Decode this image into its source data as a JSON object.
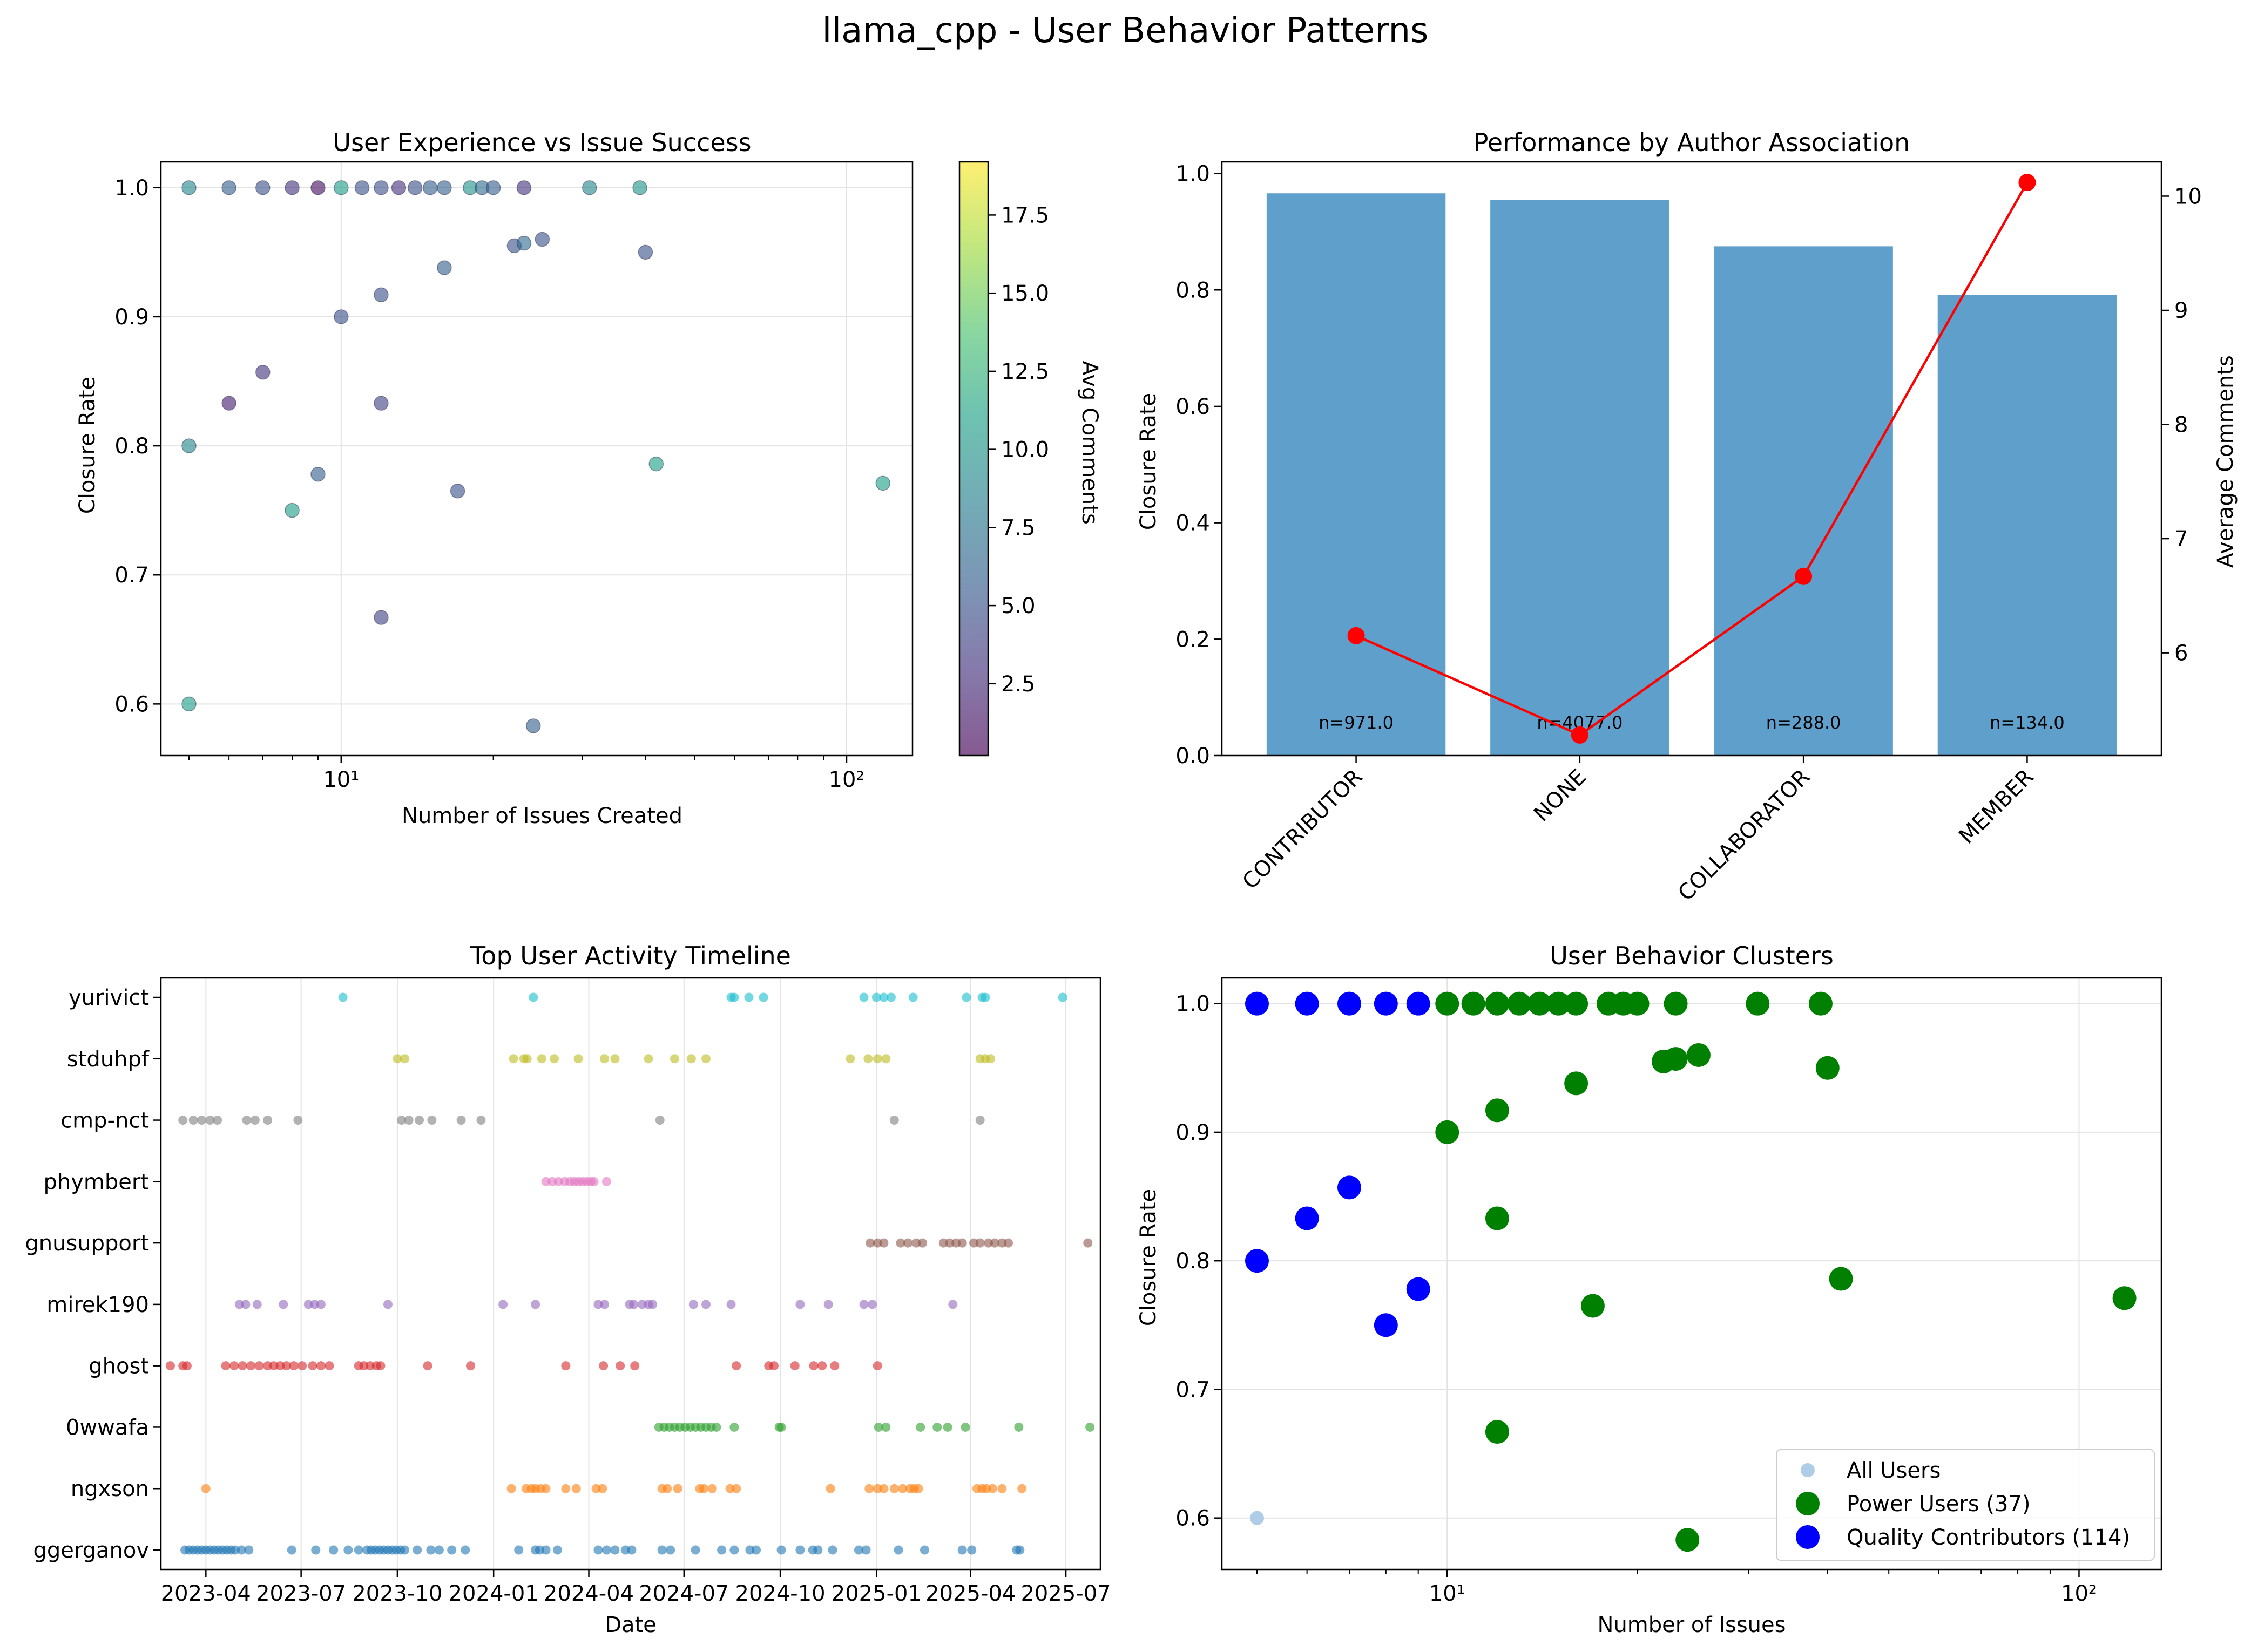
{
  "figure": {
    "title": "llama_cpp - User Behavior Patterns"
  },
  "chart_data": [
    {
      "type": "scatter",
      "title": "User Experience vs Issue Success",
      "xlabel": "Number of Issues Created",
      "ylabel": "Closure Rate",
      "xscale": "log",
      "xlim": [
        4.4,
        135
      ],
      "ylim": [
        0.56,
        1.02
      ],
      "xticks": [
        10,
        100
      ],
      "xtick_labels": [
        "10¹",
        "10²"
      ],
      "yticks": [
        0.6,
        0.7,
        0.8,
        0.9,
        1.0
      ],
      "ytick_labels": [
        "0.6",
        "0.7",
        "0.8",
        "0.9",
        "1.0"
      ],
      "grid": true,
      "colorbar": {
        "label": "Avg Comments",
        "range": [
          0.2,
          19.2
        ],
        "ticks": [
          2.5,
          5.0,
          7.5,
          10.0,
          12.5,
          15.0,
          17.5
        ],
        "tick_labels": [
          "2.5",
          "5.0",
          "7.5",
          "10.0",
          "12.5",
          "15.0",
          "17.5"
        ],
        "colormap": "viridis",
        "colors": [
          "#440154",
          "#46327e",
          "#365c8d",
          "#277f8e",
          "#1fa187",
          "#4ac16d",
          "#a0da39",
          "#fde725"
        ]
      },
      "points": [
        {
          "x": 5,
          "y": 1.0,
          "c": 9
        },
        {
          "x": 6,
          "y": 1.0,
          "c": 6
        },
        {
          "x": 7,
          "y": 1.0,
          "c": 5
        },
        {
          "x": 8,
          "y": 1.0,
          "c": 3
        },
        {
          "x": 9,
          "y": 1.0,
          "c": 1
        },
        {
          "x": 10,
          "y": 1.0,
          "c": 11
        },
        {
          "x": 11,
          "y": 1.0,
          "c": 5
        },
        {
          "x": 12,
          "y": 1.0,
          "c": 5
        },
        {
          "x": 13,
          "y": 1.0,
          "c": 3
        },
        {
          "x": 14,
          "y": 1.0,
          "c": 5
        },
        {
          "x": 15,
          "y": 1.0,
          "c": 6
        },
        {
          "x": 16,
          "y": 1.0,
          "c": 6
        },
        {
          "x": 18,
          "y": 1.0,
          "c": 10
        },
        {
          "x": 19,
          "y": 1.0,
          "c": 7
        },
        {
          "x": 20,
          "y": 1.0,
          "c": 6
        },
        {
          "x": 23,
          "y": 1.0,
          "c": 3
        },
        {
          "x": 31,
          "y": 1.0,
          "c": 9
        },
        {
          "x": 39,
          "y": 1.0,
          "c": 10
        },
        {
          "x": 5,
          "y": 0.8,
          "c": 9
        },
        {
          "x": 5,
          "y": 0.6,
          "c": 11
        },
        {
          "x": 6,
          "y": 0.833,
          "c": 2
        },
        {
          "x": 7,
          "y": 0.857,
          "c": 3
        },
        {
          "x": 8,
          "y": 0.75,
          "c": 11
        },
        {
          "x": 9,
          "y": 0.778,
          "c": 6
        },
        {
          "x": 10,
          "y": 0.9,
          "c": 5
        },
        {
          "x": 12,
          "y": 0.917,
          "c": 5
        },
        {
          "x": 12,
          "y": 0.833,
          "c": 4
        },
        {
          "x": 12,
          "y": 0.667,
          "c": 4
        },
        {
          "x": 16,
          "y": 0.938,
          "c": 6
        },
        {
          "x": 17,
          "y": 0.765,
          "c": 5
        },
        {
          "x": 22,
          "y": 0.955,
          "c": 5
        },
        {
          "x": 23,
          "y": 0.957,
          "c": 7
        },
        {
          "x": 24,
          "y": 0.583,
          "c": 6
        },
        {
          "x": 25,
          "y": 0.96,
          "c": 5
        },
        {
          "x": 40,
          "y": 0.95,
          "c": 5
        },
        {
          "x": 42,
          "y": 0.786,
          "c": 11
        },
        {
          "x": 118,
          "y": 0.771,
          "c": 11
        }
      ]
    },
    {
      "type": "bar",
      "title": "Performance by Author Association",
      "ylabel": "Closure Rate",
      "y2label": "Average Comments",
      "categories": [
        "CONTRIBUTOR",
        "NONE",
        "COLLABORATOR",
        "MEMBER"
      ],
      "values": [
        0.966,
        0.955,
        0.875,
        0.791
      ],
      "bar_color": "#5f9fcc",
      "bar_labels": [
        "n=971.0",
        "n=4077.0",
        "n=288.0",
        "n=134.0"
      ],
      "ylim": [
        0,
        1.02
      ],
      "yticks": [
        0.0,
        0.2,
        0.4,
        0.6,
        0.8,
        1.0
      ],
      "ytick_labels": [
        "0.0",
        "0.2",
        "0.4",
        "0.6",
        "0.8",
        "1.0"
      ],
      "y2lim": [
        5.1,
        10.3
      ],
      "y2ticks": [
        6,
        7,
        8,
        9,
        10
      ],
      "y2tick_labels": [
        "6",
        "7",
        "8",
        "9",
        "10"
      ],
      "line_series": {
        "values": [
          6.15,
          5.28,
          6.67,
          10.12
        ],
        "color": "#ff0000"
      }
    },
    {
      "type": "scatter",
      "title": "Top User Activity Timeline",
      "xlabel": "Date",
      "xlim": [
        "2023-02-17",
        "2025-08-03"
      ],
      "xticks": [
        "2023-04-01",
        "2023-07-01",
        "2023-10-01",
        "2024-01-01",
        "2024-04-01",
        "2024-07-01",
        "2024-10-01",
        "2025-01-01",
        "2025-04-01",
        "2025-07-01"
      ],
      "xtick_labels": [
        "2023-04",
        "2023-07",
        "2023-10",
        "2024-01",
        "2024-04",
        "2024-07",
        "2024-10",
        "2025-01",
        "2025-04",
        "2025-07"
      ],
      "grid": "x",
      "categories": [
        "ggerganov",
        "ngxson",
        "0wwafa",
        "ghost",
        "mirek190",
        "gnusupport",
        "phymbert",
        "cmp-nct",
        "stduhpf",
        "yurivict"
      ],
      "series": [
        {
          "name": "ggerganov",
          "color": "#1f77b4",
          "dates": [
            "2023-03-12",
            "2023-03-16",
            "2023-03-20",
            "2023-03-24",
            "2023-03-28",
            "2023-04-01",
            "2023-04-05",
            "2023-04-09",
            "2023-04-13",
            "2023-04-17",
            "2023-04-21",
            "2023-04-25",
            "2023-04-29",
            "2023-05-05",
            "2023-05-12",
            "2023-06-22",
            "2023-07-15",
            "2023-08-01",
            "2023-08-15",
            "2023-08-25",
            "2023-09-02",
            "2023-09-06",
            "2023-09-10",
            "2023-09-14",
            "2023-09-18",
            "2023-09-22",
            "2023-09-26",
            "2023-09-30",
            "2023-10-04",
            "2023-10-08",
            "2023-10-20",
            "2023-11-02",
            "2023-11-10",
            "2023-11-22",
            "2023-12-05",
            "2024-01-25",
            "2024-02-10",
            "2024-02-14",
            "2024-02-20",
            "2024-03-02",
            "2024-04-10",
            "2024-04-18",
            "2024-04-26",
            "2024-05-06",
            "2024-05-12",
            "2024-06-10",
            "2024-06-18",
            "2024-07-12",
            "2024-08-06",
            "2024-08-18",
            "2024-09-02",
            "2024-09-08",
            "2024-10-02",
            "2024-10-20",
            "2024-11-01",
            "2024-11-06",
            "2024-11-20",
            "2024-12-15",
            "2024-12-22",
            "2025-01-22",
            "2025-02-16",
            "2025-03-24",
            "2025-04-02",
            "2025-05-15",
            "2025-05-18"
          ]
        },
        {
          "name": "ngxson",
          "color": "#ff7f0e",
          "dates": [
            "2023-04-01",
            "2024-01-18",
            "2024-02-01",
            "2024-02-06",
            "2024-02-10",
            "2024-02-15",
            "2024-02-20",
            "2024-03-10",
            "2024-03-20",
            "2024-04-08",
            "2024-04-14",
            "2024-06-10",
            "2024-06-15",
            "2024-06-25",
            "2024-07-16",
            "2024-07-20",
            "2024-07-28",
            "2024-08-14",
            "2024-08-20",
            "2024-11-18",
            "2024-12-25",
            "2025-01-02",
            "2025-01-08",
            "2025-01-18",
            "2025-01-26",
            "2025-02-02",
            "2025-02-06",
            "2025-02-10",
            "2025-04-07",
            "2025-04-12",
            "2025-04-16",
            "2025-04-22",
            "2025-05-01",
            "2025-05-20"
          ]
        },
        {
          "name": "0wwafa",
          "color": "#2ca02c",
          "dates": [
            "2024-06-07",
            "2024-06-12",
            "2024-06-17",
            "2024-06-22",
            "2024-06-27",
            "2024-07-02",
            "2024-07-07",
            "2024-07-12",
            "2024-07-17",
            "2024-07-22",
            "2024-07-27",
            "2024-08-01",
            "2024-08-18",
            "2024-09-30",
            "2024-10-02",
            "2025-01-03",
            "2025-01-10",
            "2025-02-12",
            "2025-02-28",
            "2025-03-10",
            "2025-03-27",
            "2025-05-17",
            "2025-07-24"
          ]
        },
        {
          "name": "ghost",
          "color": "#d62728",
          "dates": [
            "2023-02-26",
            "2023-03-10",
            "2023-03-14",
            "2023-04-20",
            "2023-04-28",
            "2023-05-06",
            "2023-05-14",
            "2023-05-22",
            "2023-05-30",
            "2023-06-05",
            "2023-06-11",
            "2023-06-17",
            "2023-06-24",
            "2023-07-02",
            "2023-07-12",
            "2023-07-20",
            "2023-07-28",
            "2023-08-25",
            "2023-08-30",
            "2023-09-05",
            "2023-09-11",
            "2023-09-15",
            "2023-10-30",
            "2023-12-10",
            "2024-03-10",
            "2024-04-15",
            "2024-05-01",
            "2024-05-15",
            "2024-08-20",
            "2024-09-20",
            "2024-09-25",
            "2024-10-15",
            "2024-11-02",
            "2024-11-10",
            "2024-11-22",
            "2025-01-02"
          ]
        },
        {
          "name": "mirek190",
          "color": "#9467bd",
          "dates": [
            "2023-05-03",
            "2023-05-09",
            "2023-05-20",
            "2023-06-14",
            "2023-07-08",
            "2023-07-14",
            "2023-07-20",
            "2023-09-22",
            "2024-01-10",
            "2024-02-10",
            "2024-04-10",
            "2024-04-16",
            "2024-05-10",
            "2024-05-14",
            "2024-05-22",
            "2024-05-28",
            "2024-06-01",
            "2024-07-10",
            "2024-07-22",
            "2024-08-15",
            "2024-10-20",
            "2024-11-16",
            "2024-12-20",
            "2024-12-28",
            "2025-03-15"
          ]
        },
        {
          "name": "gnusupport",
          "color": "#8c564b",
          "dates": [
            "2024-12-26",
            "2025-01-02",
            "2025-01-08",
            "2025-01-24",
            "2025-01-31",
            "2025-02-08",
            "2025-02-14",
            "2025-03-06",
            "2025-03-12",
            "2025-03-18",
            "2025-03-24",
            "2025-04-04",
            "2025-04-10",
            "2025-04-18",
            "2025-04-24",
            "2025-05-01",
            "2025-05-07",
            "2025-07-22"
          ]
        },
        {
          "name": "phymbert",
          "color": "#e377c2",
          "dates": [
            "2024-02-20",
            "2024-02-26",
            "2024-03-03",
            "2024-03-09",
            "2024-03-14",
            "2024-03-18",
            "2024-03-22",
            "2024-03-26",
            "2024-03-30",
            "2024-04-03",
            "2024-04-06",
            "2024-04-18"
          ]
        },
        {
          "name": "cmp-nct",
          "color": "#7f7f7f",
          "dates": [
            "2023-03-10",
            "2023-03-20",
            "2023-03-28",
            "2023-04-05",
            "2023-04-12",
            "2023-05-10",
            "2023-05-18",
            "2023-05-30",
            "2023-06-28",
            "2023-10-05",
            "2023-10-12",
            "2023-10-22",
            "2023-11-03",
            "2023-12-01",
            "2023-12-20",
            "2024-06-08",
            "2025-01-18",
            "2025-04-10"
          ]
        },
        {
          "name": "stduhpf",
          "color": "#bcbd22",
          "dates": [
            "2023-10-01",
            "2023-10-08",
            "2024-01-20",
            "2024-01-30",
            "2024-02-02",
            "2024-02-16",
            "2024-02-28",
            "2024-03-22",
            "2024-04-16",
            "2024-04-26",
            "2024-05-28",
            "2024-06-22",
            "2024-07-08",
            "2024-07-22",
            "2024-12-07",
            "2024-12-24",
            "2025-01-02",
            "2025-01-10",
            "2025-04-10",
            "2025-04-15",
            "2025-04-20"
          ]
        },
        {
          "name": "yurivict",
          "color": "#17becf",
          "dates": [
            "2023-08-10",
            "2024-02-08",
            "2024-08-15",
            "2024-08-18",
            "2024-09-01",
            "2024-09-15",
            "2024-12-20",
            "2025-01-01",
            "2025-01-08",
            "2025-01-15",
            "2025-02-05",
            "2025-03-28",
            "2025-04-12",
            "2025-04-15",
            "2025-06-28"
          ]
        }
      ]
    },
    {
      "type": "scatter",
      "title": "User Behavior Clusters",
      "xlabel": "Number of Issues",
      "ylabel": "Closure Rate",
      "xscale": "log",
      "xlim": [
        4.4,
        135
      ],
      "ylim": [
        0.56,
        1.02
      ],
      "xticks": [
        10,
        100
      ],
      "xtick_labels": [
        "10¹",
        "10²"
      ],
      "yticks": [
        0.6,
        0.7,
        0.8,
        0.9,
        1.0
      ],
      "ytick_labels": [
        "0.6",
        "0.7",
        "0.8",
        "0.9",
        "1.0"
      ],
      "grid": true,
      "legend": {
        "placement": "lower right"
      },
      "series": [
        {
          "name": "All Users",
          "color": "#a6c8e4",
          "points": [
            {
              "x": 5,
              "y": 0.6
            }
          ]
        },
        {
          "name": "Power Users (37)",
          "color": "#008000",
          "points": [
            {
              "x": 10,
              "y": 1.0
            },
            {
              "x": 11,
              "y": 1.0
            },
            {
              "x": 12,
              "y": 1.0
            },
            {
              "x": 13,
              "y": 1.0
            },
            {
              "x": 14,
              "y": 1.0
            },
            {
              "x": 15,
              "y": 1.0
            },
            {
              "x": 16,
              "y": 1.0
            },
            {
              "x": 18,
              "y": 1.0
            },
            {
              "x": 19,
              "y": 1.0
            },
            {
              "x": 20,
              "y": 1.0
            },
            {
              "x": 23,
              "y": 1.0
            },
            {
              "x": 31,
              "y": 1.0
            },
            {
              "x": 39,
              "y": 1.0
            },
            {
              "x": 10,
              "y": 0.9
            },
            {
              "x": 12,
              "y": 0.917
            },
            {
              "x": 12,
              "y": 0.833
            },
            {
              "x": 12,
              "y": 0.667
            },
            {
              "x": 16,
              "y": 0.938
            },
            {
              "x": 17,
              "y": 0.765
            },
            {
              "x": 22,
              "y": 0.955
            },
            {
              "x": 23,
              "y": 0.957
            },
            {
              "x": 24,
              "y": 0.583
            },
            {
              "x": 25,
              "y": 0.96
            },
            {
              "x": 40,
              "y": 0.95
            },
            {
              "x": 42,
              "y": 0.786
            },
            {
              "x": 118,
              "y": 0.771
            }
          ]
        },
        {
          "name": "Quality Contributors (114)",
          "color": "#0000ff",
          "points": [
            {
              "x": 5,
              "y": 1.0
            },
            {
              "x": 6,
              "y": 1.0
            },
            {
              "x": 7,
              "y": 1.0
            },
            {
              "x": 8,
              "y": 1.0
            },
            {
              "x": 9,
              "y": 1.0
            },
            {
              "x": 5,
              "y": 0.8
            },
            {
              "x": 6,
              "y": 0.833
            },
            {
              "x": 7,
              "y": 0.857
            },
            {
              "x": 8,
              "y": 0.75
            },
            {
              "x": 9,
              "y": 0.778
            }
          ]
        }
      ]
    }
  ]
}
